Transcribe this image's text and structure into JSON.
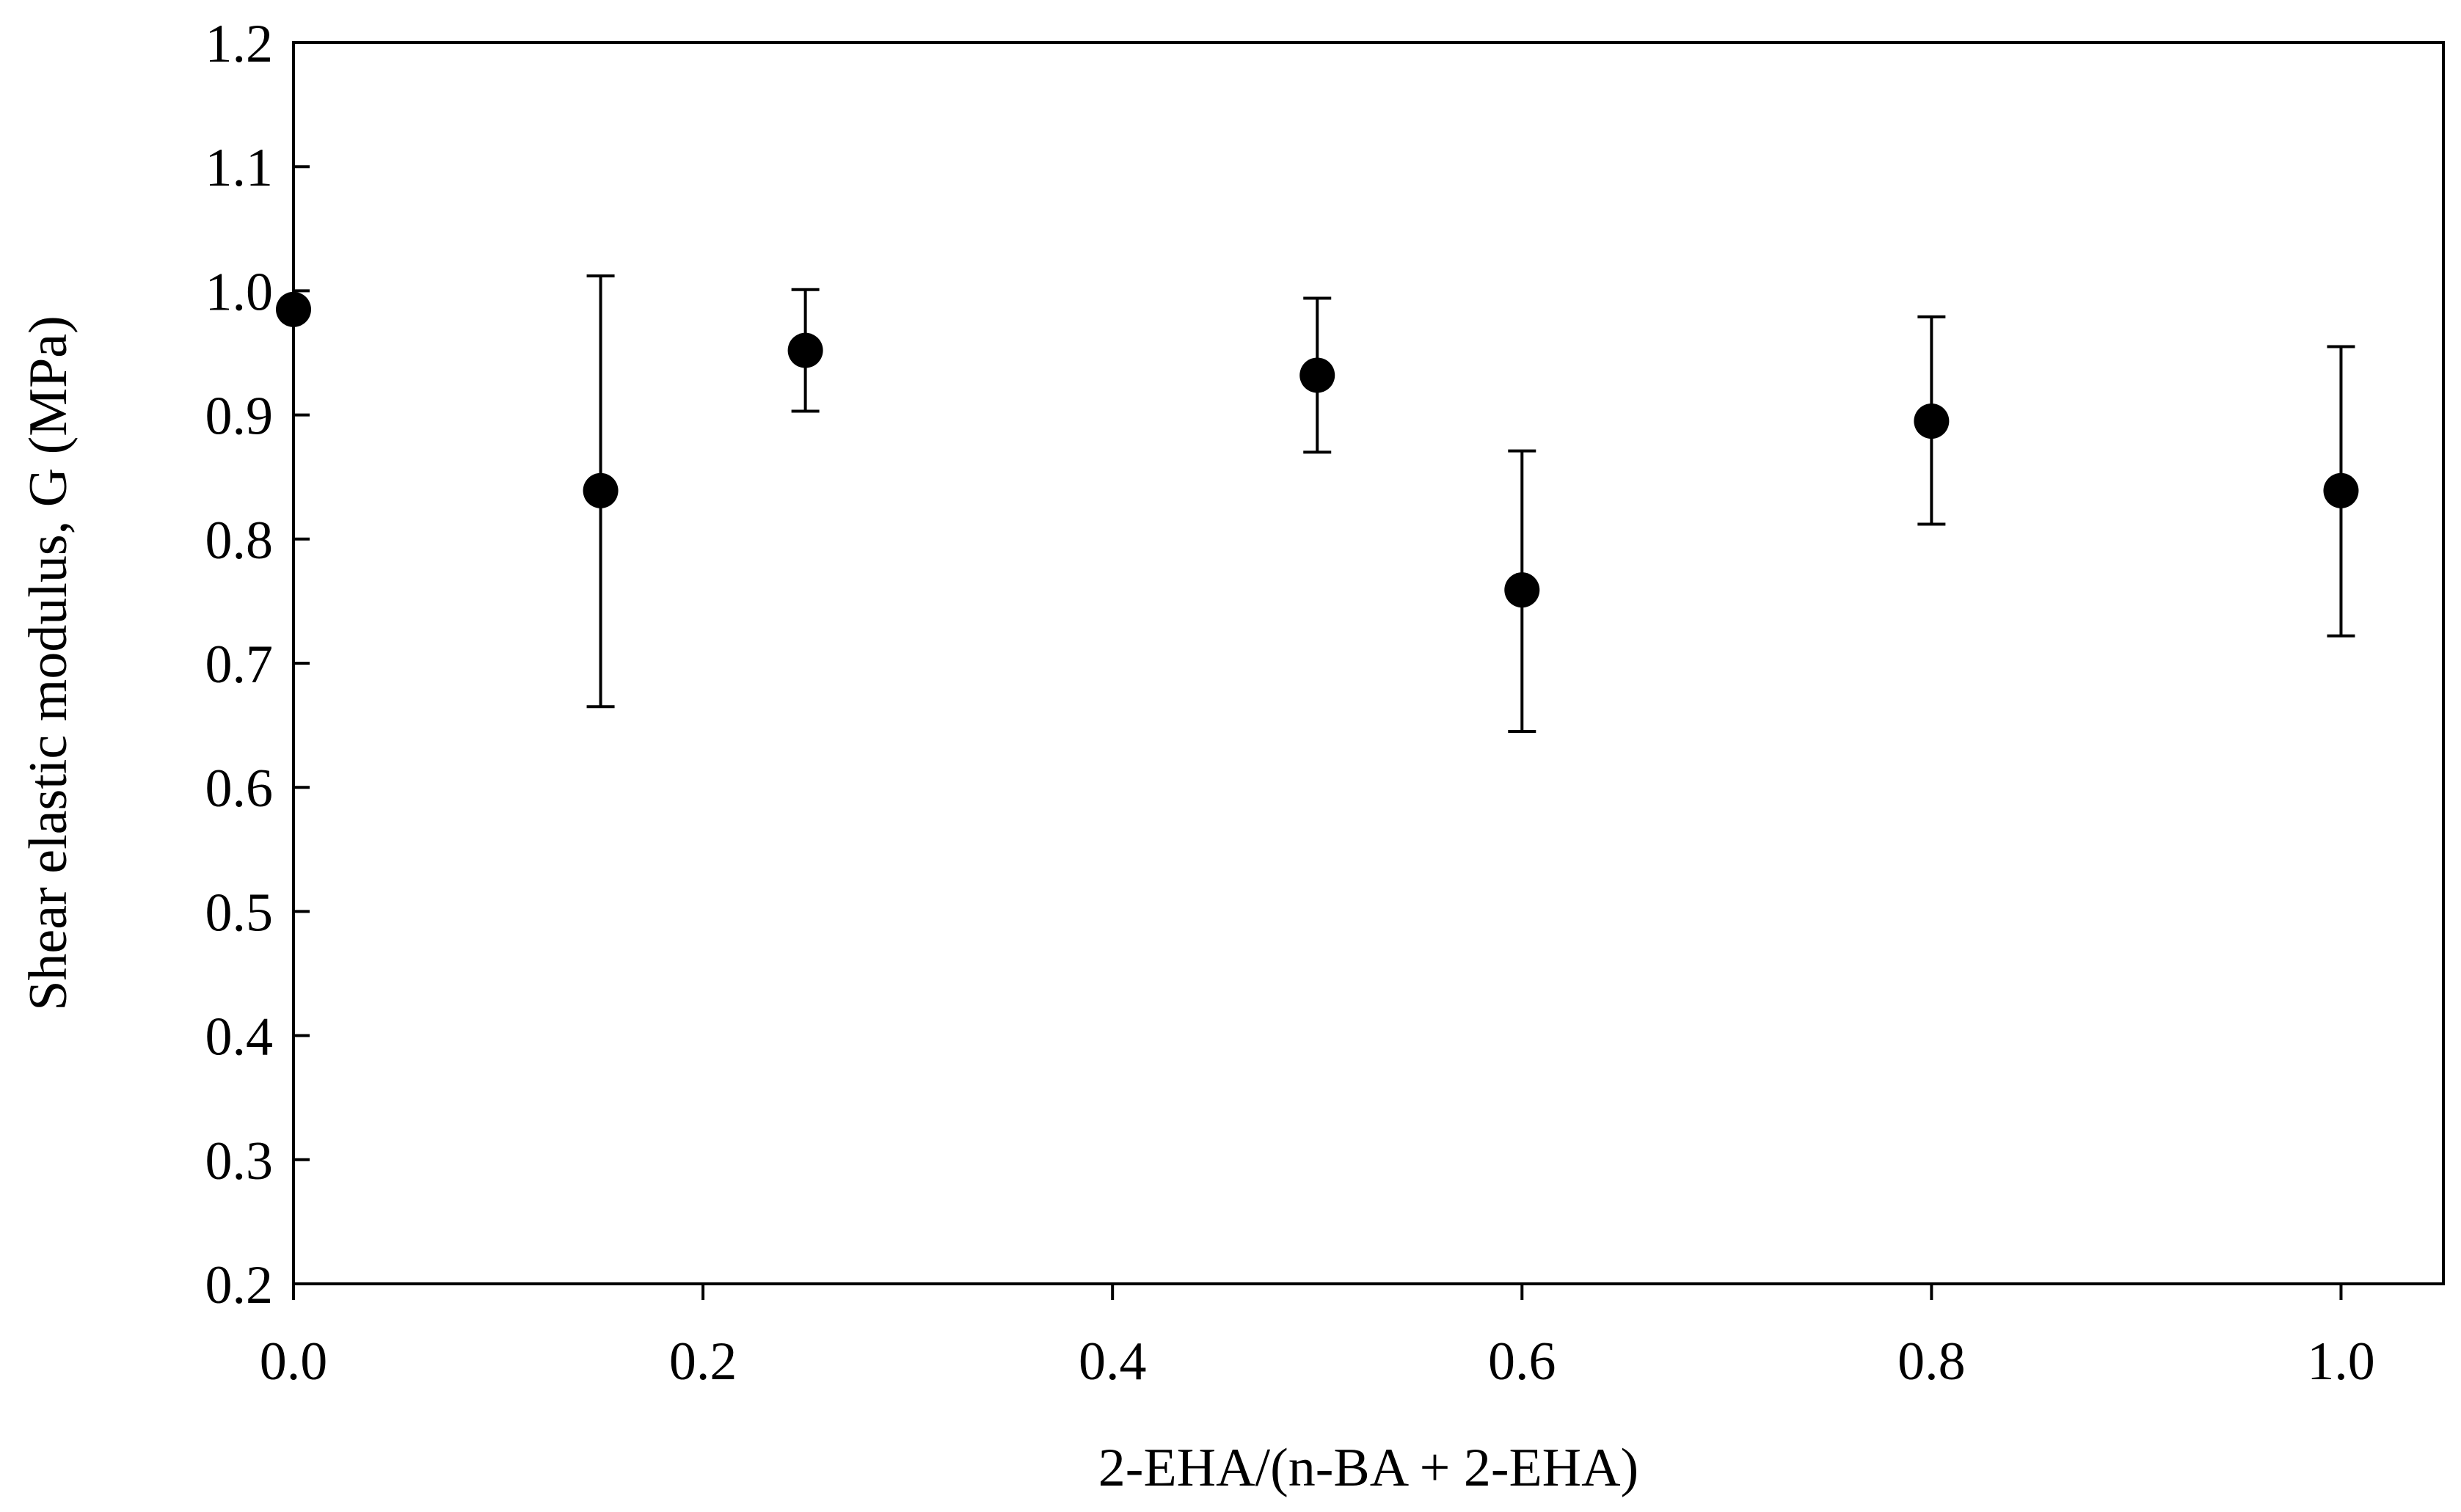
{
  "chart_data": {
    "type": "scatter",
    "title": "",
    "xlabel": "2-EHA/(n-BA + 2-EHA)",
    "ylabel": "Shear elastic modulus, G (MPa)",
    "xlim": [
      0,
      1.05
    ],
    "ylim": [
      0.2,
      1.2
    ],
    "x_ticks": [
      0.0,
      0.2,
      0.4,
      0.6,
      0.8,
      1.0
    ],
    "x_tick_labels": [
      "0.0",
      "0.2",
      "0.4",
      "0.6",
      "0.8",
      "1.0"
    ],
    "y_ticks": [
      0.2,
      0.3,
      0.4,
      0.5,
      0.6,
      0.7,
      0.8,
      0.9,
      1.0,
      1.1,
      1.2
    ],
    "y_tick_labels": [
      "0.2",
      "0.3",
      "0.4",
      "0.5",
      "0.6",
      "0.7",
      "0.8",
      "0.9",
      "1.0",
      "1.1",
      "1.2"
    ],
    "grid": false,
    "legend": "none",
    "marker_color": "#000000",
    "series": [
      {
        "x": [
          0.0,
          0.15,
          0.25,
          0.5,
          0.6,
          0.8,
          1.0
        ],
        "y": [
          0.985,
          0.839,
          0.952,
          0.932,
          0.759,
          0.895,
          0.839
        ],
        "error_low": [
          0.985,
          0.665,
          0.903,
          0.87,
          0.645,
          0.812,
          0.722
        ],
        "error_high": [
          0.985,
          1.012,
          1.001,
          0.994,
          0.871,
          0.979,
          0.955
        ]
      }
    ]
  }
}
